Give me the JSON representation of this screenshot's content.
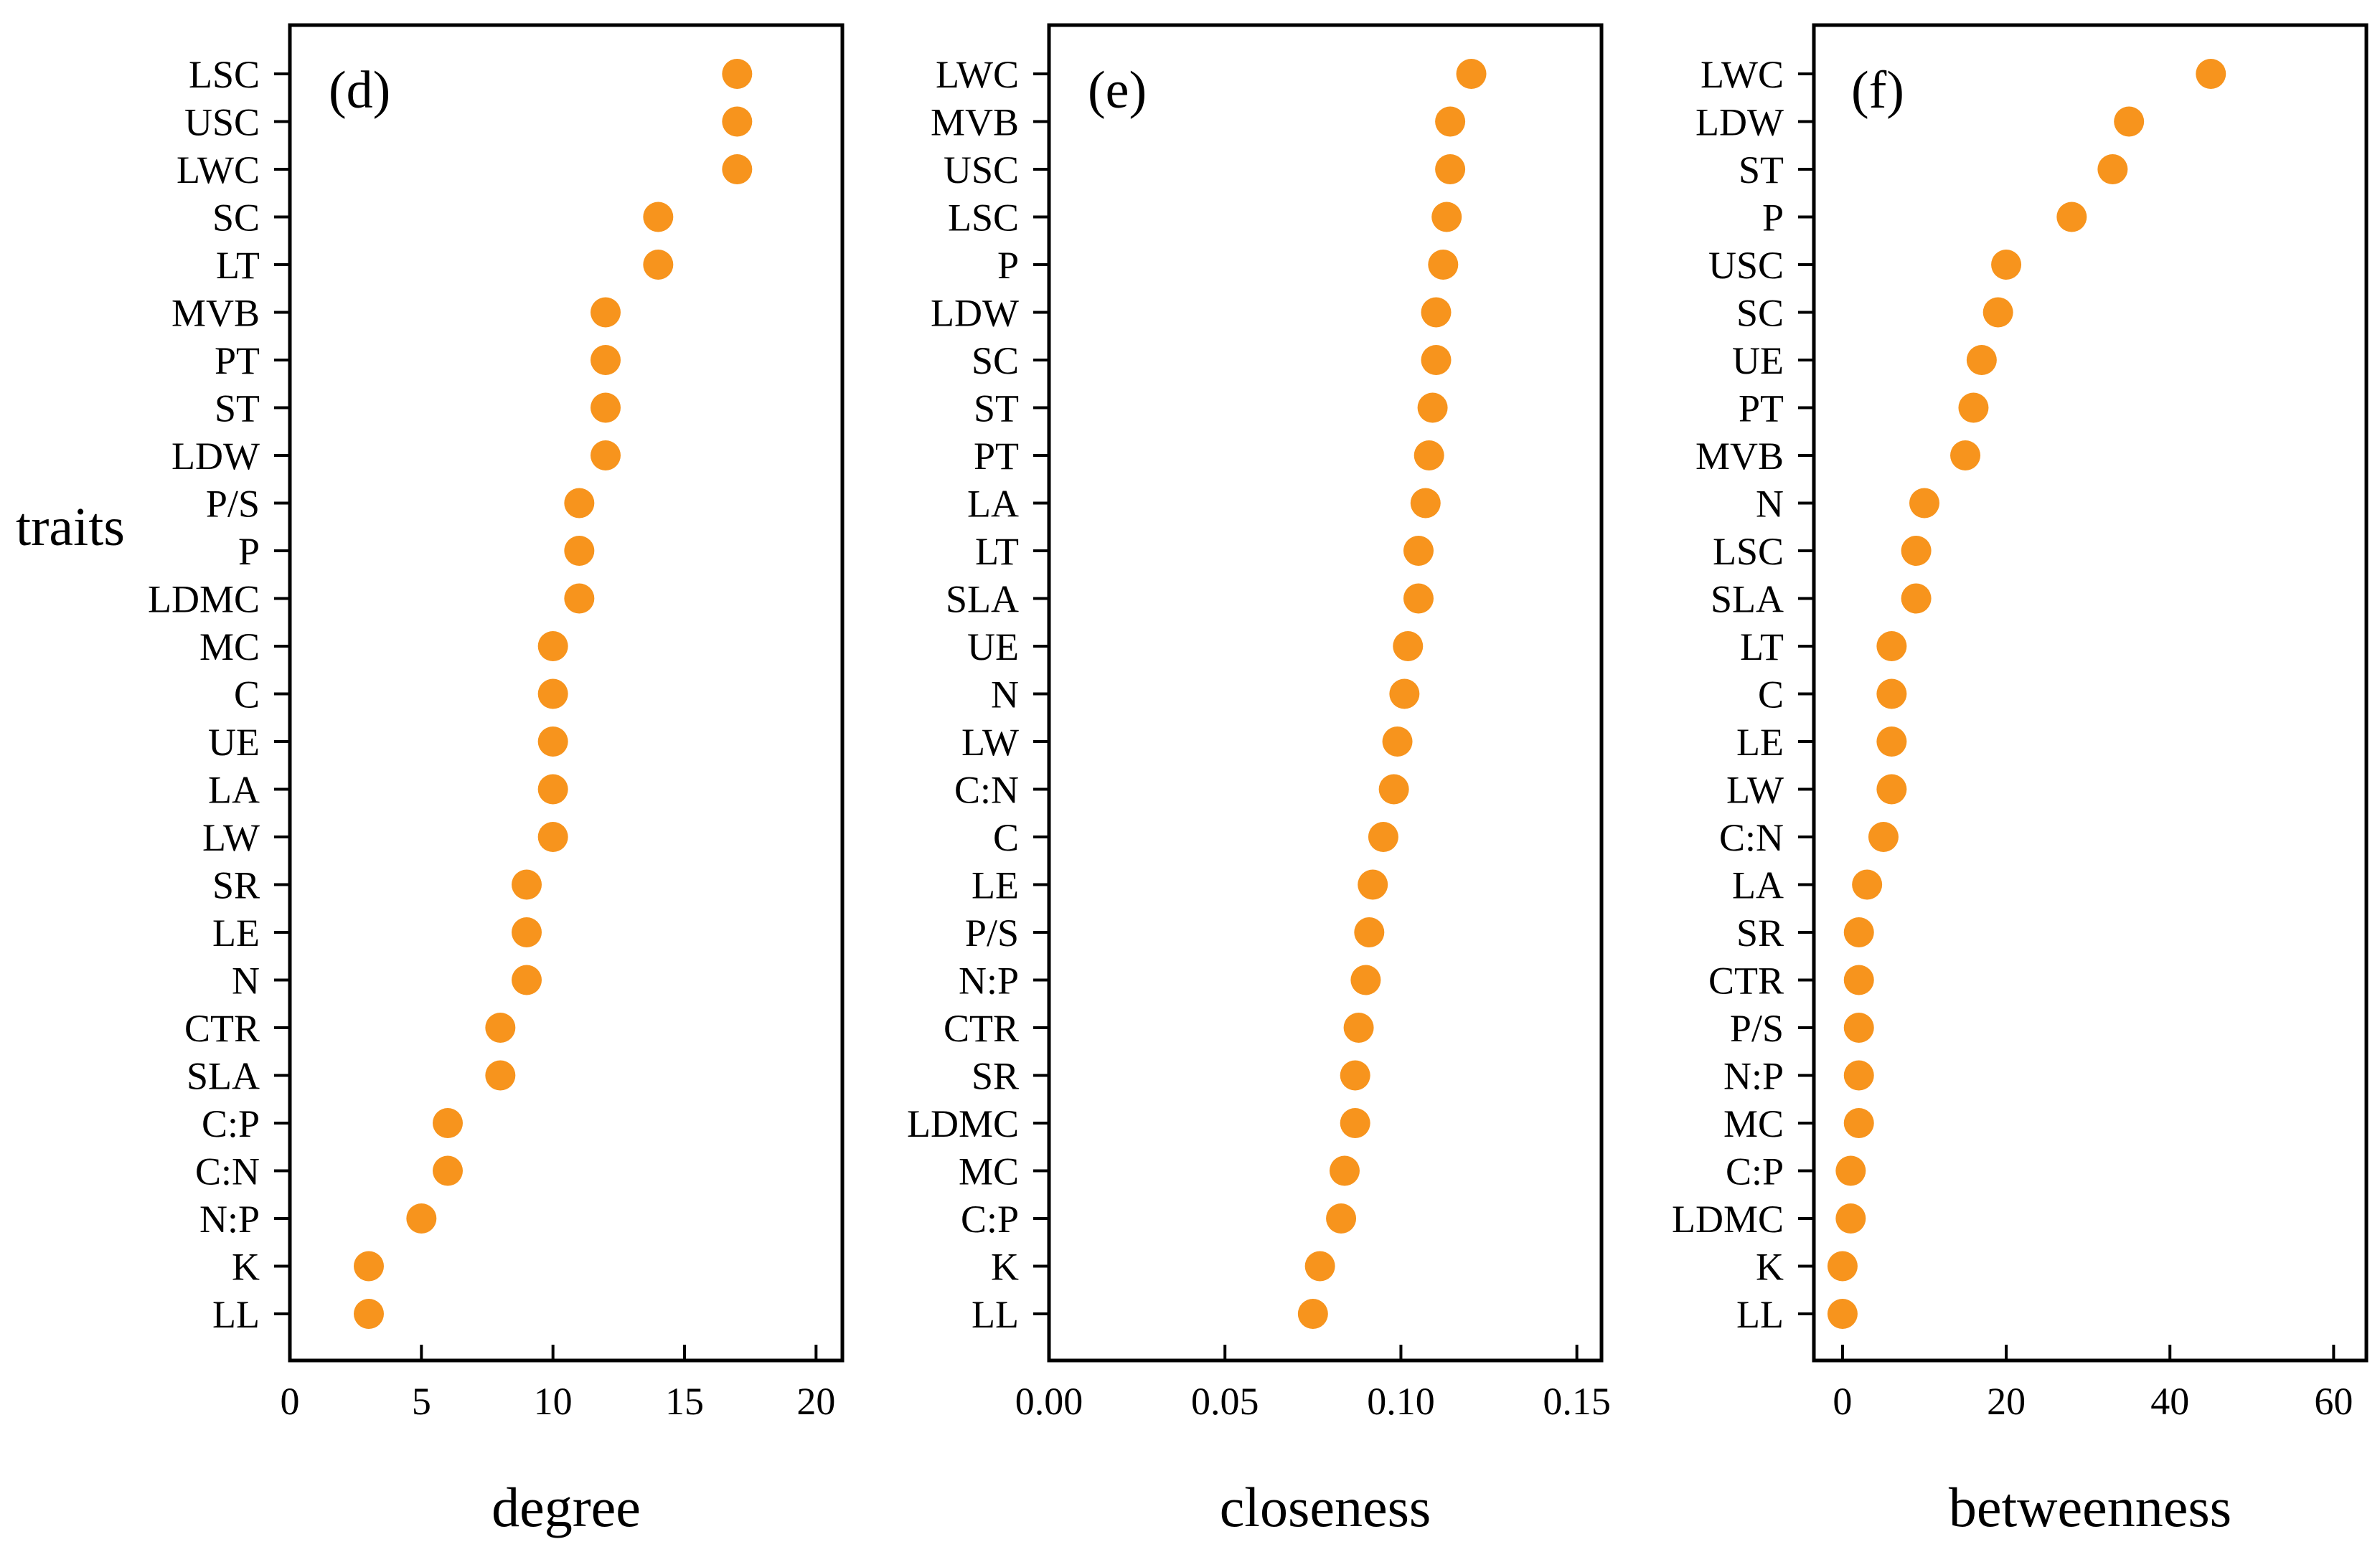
{
  "colors": {
    "marker": "#F7941D",
    "axis": "#000000",
    "background": "#ffffff"
  },
  "ylabel": "traits",
  "chart_data": [
    {
      "type": "scatter",
      "panel": "(d)",
      "xlabel": "degree",
      "xlim": [
        0,
        21
      ],
      "xticks": [
        0,
        5,
        10,
        15,
        20
      ],
      "xtick_labels": [
        "0",
        "5",
        "10",
        "15",
        "20"
      ],
      "categories": [
        "LSC",
        "USC",
        "LWC",
        "SC",
        "LT",
        "MVB",
        "PT",
        "ST",
        "LDW",
        "P/S",
        "P",
        "LDMC",
        "MC",
        "C",
        "UE",
        "LA",
        "LW",
        "SR",
        "LE",
        "N",
        "CTR",
        "SLA",
        "C:P",
        "C:N",
        "N:P",
        "K",
        "LL"
      ],
      "values": [
        17,
        17,
        17,
        14,
        14,
        12,
        12,
        12,
        12,
        11,
        11,
        11,
        10,
        10,
        10,
        10,
        10,
        9,
        9,
        9,
        8,
        8,
        6,
        6,
        5,
        3,
        3
      ]
    },
    {
      "type": "scatter",
      "panel": "(e)",
      "xlabel": "closeness",
      "xlim": [
        0,
        0.157
      ],
      "xticks": [
        0,
        0.05,
        0.1,
        0.15
      ],
      "xtick_labels": [
        "0.00",
        "0.05",
        "0.10",
        "0.15"
      ],
      "categories": [
        "LWC",
        "MVB",
        "USC",
        "LSC",
        "P",
        "LDW",
        "SC",
        "ST",
        "PT",
        "LA",
        "LT",
        "SLA",
        "UE",
        "N",
        "LW",
        "C:N",
        "C",
        "LE",
        "P/S",
        "N:P",
        "CTR",
        "SR",
        "LDMC",
        "MC",
        "C:P",
        "K",
        "LL"
      ],
      "values": [
        0.12,
        0.114,
        0.114,
        0.113,
        0.112,
        0.11,
        0.11,
        0.109,
        0.108,
        0.107,
        0.105,
        0.105,
        0.102,
        0.101,
        0.099,
        0.098,
        0.095,
        0.092,
        0.091,
        0.09,
        0.088,
        0.087,
        0.087,
        0.084,
        0.083,
        0.077,
        0.075
      ]
    },
    {
      "type": "scatter",
      "panel": "(f)",
      "xlabel": "betweenness",
      "xlim": [
        -3.5,
        64
      ],
      "xticks": [
        0,
        20,
        40,
        60
      ],
      "xtick_labels": [
        "0",
        "20",
        "40",
        "60"
      ],
      "categories": [
        "LWC",
        "LDW",
        "ST",
        "P",
        "USC",
        "SC",
        "UE",
        "PT",
        "MVB",
        "N",
        "LSC",
        "SLA",
        "LT",
        "C",
        "LE",
        "LW",
        "C:N",
        "LA",
        "SR",
        "CTR",
        "P/S",
        "N:P",
        "MC",
        "C:P",
        "LDMC",
        "K",
        "LL"
      ],
      "values": [
        45,
        35,
        33,
        28,
        20,
        19,
        17,
        16,
        15,
        10,
        9,
        9,
        6,
        6,
        6,
        6,
        5,
        3,
        2,
        2,
        2,
        2,
        2,
        1,
        1,
        0,
        0
      ]
    }
  ]
}
